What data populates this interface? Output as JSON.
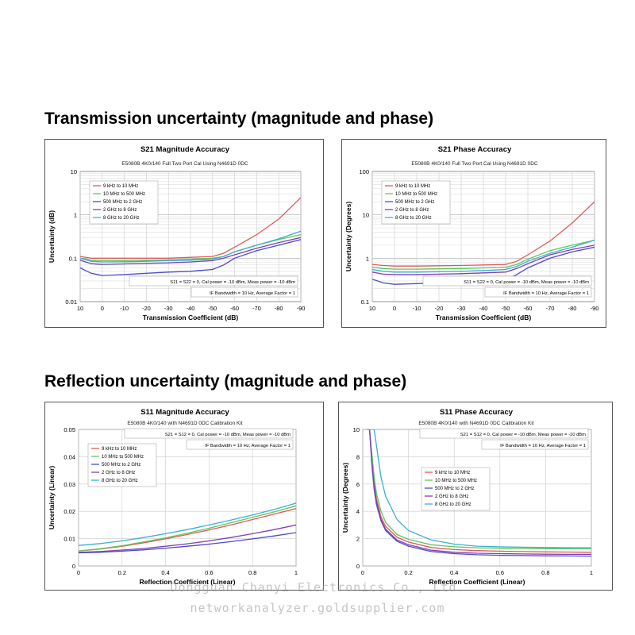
{
  "sections": {
    "transmission": "Transmission uncertainty (magnitude and phase)",
    "reflection": "Reflection uncertainty (magnitude and phase)"
  },
  "watermark": {
    "line1": "Dongguan Chanyi Electronics Co., Ltd.",
    "line2": "networkanalyzer.goldsupplier.com"
  },
  "colors": {
    "9 kHz to 10 MHz": "#e05a5a",
    "10 MHz to 500 MHz": "#5cc85c",
    "500 MHz to 2 GHz": "#4a4ad0",
    "2 GHz to 8 GHz": "#8040b0",
    "8 GHz to 20 GHz": "#3ab0d0"
  },
  "chart_data": [
    {
      "type": "line",
      "title": "S21 Magnitude Accuracy",
      "subtitle": "E5080B 4K0/140 Full Two Port Cal Using N4691D 0DC",
      "xlabel": "Transmission Coefficient (dB)",
      "ylabel": "Uncertainty (dB)",
      "yscale": "log",
      "xlim": [
        10,
        -90
      ],
      "ylim": [
        0.01,
        10
      ],
      "xticks": [
        "10",
        "0",
        "-10",
        "-20",
        "-30",
        "-40",
        "-50",
        "-60",
        "-70",
        "-80",
        "-90"
      ],
      "yticks": [
        "0.01",
        "0.1",
        "1",
        "10"
      ],
      "grid": true,
      "legend_position": "top-left",
      "annotations": [
        "S11 = S22 = 0, Cal power = -10 dBm, Meas power = -10 dBm",
        "IF Bandwidth = 10 Hz, Average Factor = 1"
      ],
      "x": [
        10,
        5,
        0,
        -10,
        -20,
        -30,
        -40,
        -50,
        -55,
        -60,
        -70,
        -80,
        -90
      ],
      "series": [
        {
          "name": "9 kHz to 10 MHz",
          "values": [
            0.11,
            0.1,
            0.1,
            0.1,
            0.1,
            0.1,
            0.105,
            0.11,
            0.13,
            0.18,
            0.35,
            0.8,
            2.5
          ]
        },
        {
          "name": "10 MHz to 500 MHz",
          "values": [
            0.1,
            0.09,
            0.088,
            0.088,
            0.09,
            0.092,
            0.095,
            0.1,
            0.11,
            0.14,
            0.2,
            0.27,
            0.35
          ]
        },
        {
          "name": "500 MHz to 2 GHz",
          "values": [
            0.06,
            0.045,
            0.04,
            0.042,
            0.045,
            0.048,
            0.05,
            0.055,
            0.07,
            0.1,
            0.15,
            0.2,
            0.27
          ]
        },
        {
          "name": "2 GHz to 8 GHz",
          "values": [
            0.09,
            0.075,
            0.072,
            0.074,
            0.076,
            0.078,
            0.082,
            0.088,
            0.1,
            0.12,
            0.17,
            0.23,
            0.3
          ]
        },
        {
          "name": "8 GHz to 20 GHz",
          "values": [
            0.1,
            0.085,
            0.082,
            0.083,
            0.085,
            0.088,
            0.09,
            0.095,
            0.11,
            0.14,
            0.2,
            0.28,
            0.42
          ]
        }
      ]
    },
    {
      "type": "line",
      "title": "S21 Phase Accuracy",
      "subtitle": "E5080B 4K0/140 Full Two Port Cal Using N4691D 0DC",
      "xlabel": "Transmission Coefficient (dB)",
      "ylabel": "Uncertainty (Degrees)",
      "yscale": "log",
      "xlim": [
        10,
        -90
      ],
      "ylim": [
        0.1,
        100
      ],
      "xticks": [
        "10",
        "0",
        "-10",
        "-20",
        "-30",
        "-40",
        "-50",
        "-60",
        "-70",
        "-80",
        "-90"
      ],
      "yticks": [
        "0.1",
        "1",
        "10",
        "100"
      ],
      "grid": true,
      "legend_position": "top-left",
      "annotations": [
        "S11 = S22 = 0, Cal power = -10 dBm, Meas power = -10 dBm",
        "IF Bandwidth = 10 Hz, Average Factor = 1"
      ],
      "x": [
        10,
        5,
        0,
        -10,
        -20,
        -30,
        -40,
        -50,
        -55,
        -60,
        -70,
        -80,
        -90
      ],
      "series": [
        {
          "name": "9 kHz to 10 MHz",
          "values": [
            0.72,
            0.68,
            0.66,
            0.66,
            0.67,
            0.68,
            0.7,
            0.72,
            0.85,
            1.2,
            2.5,
            6.5,
            20
          ]
        },
        {
          "name": "10 MHz to 500 MHz",
          "values": [
            0.62,
            0.58,
            0.56,
            0.56,
            0.57,
            0.58,
            0.6,
            0.62,
            0.72,
            0.95,
            1.5,
            2.0,
            2.6
          ]
        },
        {
          "name": "500 MHz to 2 GHz",
          "values": [
            0.33,
            0.27,
            0.25,
            0.26,
            0.27,
            0.28,
            0.29,
            0.31,
            0.42,
            0.6,
            1.0,
            1.4,
            1.8
          ]
        },
        {
          "name": "2 GHz to 8 GHz",
          "values": [
            0.48,
            0.43,
            0.42,
            0.42,
            0.43,
            0.44,
            0.46,
            0.48,
            0.58,
            0.75,
            1.2,
            1.6,
            2.0
          ]
        },
        {
          "name": "8 GHz to 20 GHz",
          "values": [
            0.55,
            0.5,
            0.48,
            0.48,
            0.49,
            0.5,
            0.52,
            0.55,
            0.65,
            0.85,
            1.3,
            1.8,
            2.6
          ]
        }
      ]
    },
    {
      "type": "line",
      "title": "S11 Magnitude Accuracy",
      "subtitle": "E5080B 4K0/140 with N4691D 0DC Calibration Kit",
      "xlabel": "Reflection Coefficient (Linear)",
      "ylabel": "Uncertainty (Linear)",
      "xlim": [
        0,
        1
      ],
      "ylim": [
        0,
        0.05
      ],
      "xticks": [
        "0",
        "0.2",
        "0.4",
        "0.6",
        "0.8",
        "1"
      ],
      "yticks": [
        "0",
        "0.01",
        "0.02",
        "0.03",
        "0.04",
        "0.05"
      ],
      "grid": true,
      "legend_position": "top-left",
      "annotations": [
        "S21 = S12 = 0, Cal power = -10 dBm, Meas power = -10 dBm",
        "IF Bandwidth = 10 Hz, Average Factor = 1"
      ],
      "x": [
        0,
        0.1,
        0.2,
        0.3,
        0.4,
        0.5,
        0.6,
        0.7,
        0.8,
        0.9,
        1.0
      ],
      "series": [
        {
          "name": "9 kHz to 10 MHz",
          "values": [
            0.0055,
            0.0062,
            0.0072,
            0.0085,
            0.0099,
            0.0115,
            0.0132,
            0.015,
            0.017,
            0.019,
            0.021
          ]
        },
        {
          "name": "10 MHz to 500 MHz",
          "values": [
            0.0055,
            0.0063,
            0.0074,
            0.0088,
            0.0103,
            0.012,
            0.0138,
            0.0158,
            0.0178,
            0.0198,
            0.022
          ]
        },
        {
          "name": "500 MHz to 2 GHz",
          "values": [
            0.0048,
            0.005,
            0.0054,
            0.0059,
            0.0065,
            0.0072,
            0.008,
            0.0089,
            0.0099,
            0.011,
            0.0122
          ]
        },
        {
          "name": "2 GHz to 8 GHz",
          "values": [
            0.005,
            0.0053,
            0.0058,
            0.0064,
            0.0072,
            0.0081,
            0.0092,
            0.0104,
            0.0118,
            0.0133,
            0.015
          ]
        },
        {
          "name": "8 GHz to 20 GHz",
          "values": [
            0.0075,
            0.0082,
            0.0092,
            0.0104,
            0.0118,
            0.0133,
            0.015,
            0.0168,
            0.0187,
            0.0207,
            0.023
          ]
        }
      ]
    },
    {
      "type": "line",
      "title": "S11 Phase Accuracy",
      "subtitle": "E5080B 4K0/140 with N4691D 0DC Calibration Kit",
      "xlabel": "Reflection Coefficient (Linear)",
      "ylabel": "Uncertainty (Degrees)",
      "xlim": [
        0,
        1
      ],
      "ylim": [
        0,
        10
      ],
      "xticks": [
        "0",
        "0.2",
        "0.4",
        "0.6",
        "0.8",
        "1"
      ],
      "yticks": [
        "0",
        "2",
        "4",
        "6",
        "8",
        "10"
      ],
      "grid": true,
      "legend_position": "center-left",
      "annotations": [
        "S21 = S12 = 0, Cal power = -10 dBm, Meas power = -10 dBm",
        "IF Bandwidth = 10 Hz, Average Factor = 1"
      ],
      "x": [
        0.02,
        0.03,
        0.04,
        0.05,
        0.06,
        0.08,
        0.1,
        0.15,
        0.2,
        0.3,
        0.4,
        0.5,
        0.6,
        0.7,
        0.8,
        0.9,
        1.0
      ],
      "series": [
        {
          "name": "9 kHz to 10 MHz",
          "values": [
            10,
            10,
            7.8,
            6.0,
            4.9,
            3.6,
            2.9,
            2.1,
            1.75,
            1.35,
            1.2,
            1.12,
            1.08,
            1.05,
            1.03,
            1.02,
            1.0
          ]
        },
        {
          "name": "10 MHz to 500 MHz",
          "values": [
            10,
            10,
            8.2,
            6.5,
            5.3,
            4.0,
            3.2,
            2.3,
            1.95,
            1.55,
            1.4,
            1.33,
            1.3,
            1.28,
            1.27,
            1.26,
            1.25
          ]
        },
        {
          "name": "500 MHz to 2 GHz",
          "values": [
            10,
            10,
            7.4,
            5.6,
            4.5,
            3.3,
            2.6,
            1.8,
            1.45,
            1.05,
            0.9,
            0.82,
            0.78,
            0.76,
            0.74,
            0.73,
            0.72
          ]
        },
        {
          "name": "2 GHz to 8 GHz",
          "values": [
            10,
            10,
            7.6,
            5.8,
            4.7,
            3.4,
            2.7,
            1.9,
            1.55,
            1.15,
            1.0,
            0.93,
            0.9,
            0.88,
            0.86,
            0.85,
            0.85
          ]
        },
        {
          "name": "8 GHz to 20 GHz",
          "values": [
            10,
            10,
            10,
            10,
            8.8,
            6.5,
            5.1,
            3.4,
            2.6,
            1.9,
            1.6,
            1.45,
            1.4,
            1.37,
            1.35,
            1.34,
            1.33
          ]
        }
      ]
    }
  ]
}
